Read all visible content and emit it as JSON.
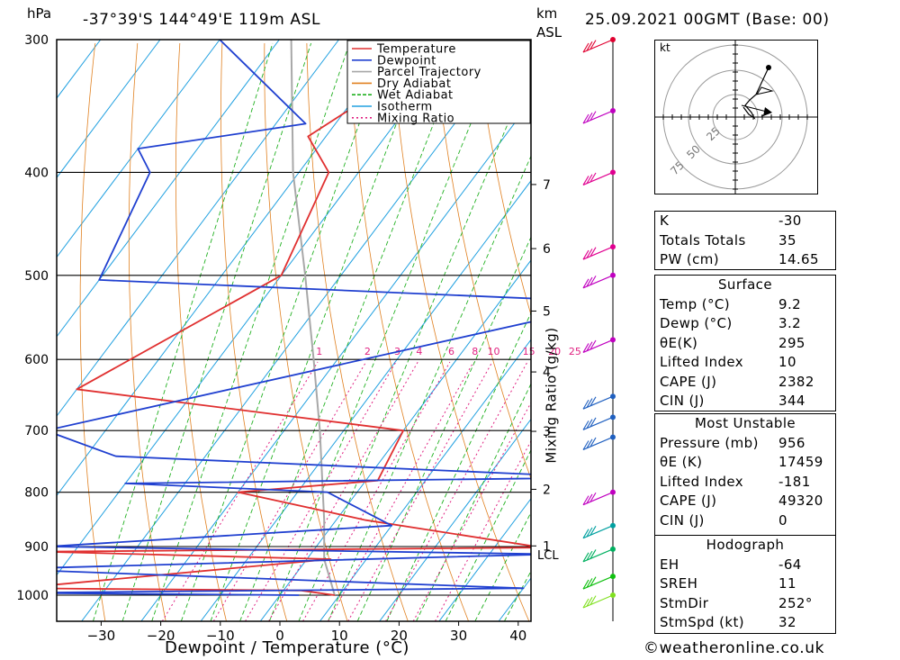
{
  "header": {
    "left_unit": "hPa",
    "location": "-37°39'S 144°49'E 119m ASL",
    "km_unit": "km",
    "asl_unit": "ASL",
    "datetime": "25.09.2021 00GMT (Base: 00)"
  },
  "chart_data": {
    "type": "line",
    "xlabel": "Dewpoint / Temperature (°C)",
    "ylabel": "",
    "x_ticks": [
      -30,
      -20,
      -10,
      0,
      10,
      20,
      30,
      40
    ],
    "pressure_ticks": [
      300,
      400,
      500,
      600,
      700,
      800,
      900,
      1000
    ],
    "km_ticks": [
      1,
      2,
      3,
      4,
      5,
      6,
      7
    ],
    "lcl_label": "LCL",
    "mixing_ratio_label": "Mixing Ratio (g/kg)",
    "mixing_ratio_values": [
      "1",
      "2",
      "3",
      "4",
      "6",
      "8",
      "10",
      "15",
      "20",
      "25"
    ],
    "legend": [
      {
        "name": "Temperature",
        "color": "#e03030",
        "dash": "solid"
      },
      {
        "name": "Dewpoint",
        "color": "#2040d0",
        "dash": "solid"
      },
      {
        "name": "Parcel Trajectory",
        "color": "#a8a8a8",
        "dash": "solid"
      },
      {
        "name": "Dry Adiabat",
        "color": "#e08020",
        "dash": "solid"
      },
      {
        "name": "Wet Adiabat",
        "color": "#20b020",
        "dash": "dashed"
      },
      {
        "name": "Isotherm",
        "color": "#20a0e0",
        "dash": "solid"
      },
      {
        "name": "Mixing Ratio",
        "color": "#e02080",
        "dash": "dotted"
      }
    ],
    "temperature": [
      {
        "p": 1000,
        "t": 9.2
      },
      {
        "p": 990,
        "t": 3
      },
      {
        "p": 985,
        "t": -45
      },
      {
        "p": 925,
        "t": 4
      },
      {
        "p": 910,
        "t": -45
      },
      {
        "p": 902,
        "t": 38
      },
      {
        "p": 850,
        "t": 5
      },
      {
        "p": 800,
        "t": -20
      },
      {
        "p": 780,
        "t": 2
      },
      {
        "p": 700,
        "t": 0
      },
      {
        "p": 640,
        "t": -60
      },
      {
        "p": 500,
        "t": -40
      },
      {
        "p": 400,
        "t": -45
      },
      {
        "p": 370,
        "t": -53
      },
      {
        "p": 300,
        "t": -40
      }
    ],
    "dewpoint": [
      {
        "p": 1000,
        "t": 3.2
      },
      {
        "p": 995,
        "t": -45
      },
      {
        "p": 985,
        "t": 40
      },
      {
        "p": 945,
        "t": -50
      },
      {
        "p": 915,
        "t": 40
      },
      {
        "p": 900,
        "t": -45
      },
      {
        "p": 860,
        "t": 10
      },
      {
        "p": 800,
        "t": -5
      },
      {
        "p": 785,
        "t": -40
      },
      {
        "p": 775,
        "t": 40
      },
      {
        "p": 740,
        "t": -45
      },
      {
        "p": 700,
        "t": -60
      },
      {
        "p": 530,
        "t": 20
      },
      {
        "p": 505,
        "t": -70
      },
      {
        "p": 400,
        "t": -75
      },
      {
        "p": 380,
        "t": -80
      },
      {
        "p": 360,
        "t": -55
      },
      {
        "p": 300,
        "t": -80
      }
    ],
    "parcel": [
      {
        "p": 1000,
        "t": 9.2
      },
      {
        "p": 925,
        "t": 2.9
      },
      {
        "p": 850,
        "t": -2
      },
      {
        "p": 700,
        "t": -14
      },
      {
        "p": 600,
        "t": -24
      },
      {
        "p": 500,
        "t": -36
      },
      {
        "p": 400,
        "t": -51
      },
      {
        "p": 300,
        "t": -68
      }
    ],
    "wind_barb_pressures": [
      300,
      350,
      400,
      470,
      500,
      575,
      650,
      680,
      710,
      800,
      860,
      905,
      960,
      1000
    ]
  },
  "hodograph": {
    "unit": "kt",
    "ring_labels": [
      "25",
      "50",
      "75"
    ]
  },
  "indices": {
    "k_label": "K",
    "k_value": "-30",
    "tt_label": "Totals Totals",
    "tt_value": "35",
    "pw_label": "PW (cm)",
    "pw_value": "14.65"
  },
  "surface": {
    "title": "Surface",
    "temp_label": "Temp (°C)",
    "temp_value": "9.2",
    "dewp_label": "Dewp (°C)",
    "dewp_value": "3.2",
    "theta_label": "θE(K)",
    "theta_value": "295",
    "li_label": "Lifted Index",
    "li_value": "10",
    "cape_label": "CAPE (J)",
    "cape_value": "2382",
    "cin_label": "CIN (J)",
    "cin_value": "344"
  },
  "most_unstable": {
    "title": "Most Unstable",
    "pressure_label": "Pressure (mb)",
    "pressure_value": "956",
    "theta_label": "θE (K)",
    "theta_value": "17459",
    "li_label": "Lifted Index",
    "li_value": "-181",
    "cape_label": "CAPE (J)",
    "cape_value": "49320",
    "cin_label": "CIN (J)",
    "cin_value": "0"
  },
  "hodo_params": {
    "title": "Hodograph",
    "eh_label": "EH",
    "eh_value": "-64",
    "sreh_label": "SREH",
    "sreh_value": "11",
    "stmdir_label": "StmDir",
    "stmdir_value": "252°",
    "stmspd_label": "StmSpd (kt)",
    "stmspd_value": "32"
  },
  "footer": {
    "credit": "©weatheronline.co.uk"
  }
}
